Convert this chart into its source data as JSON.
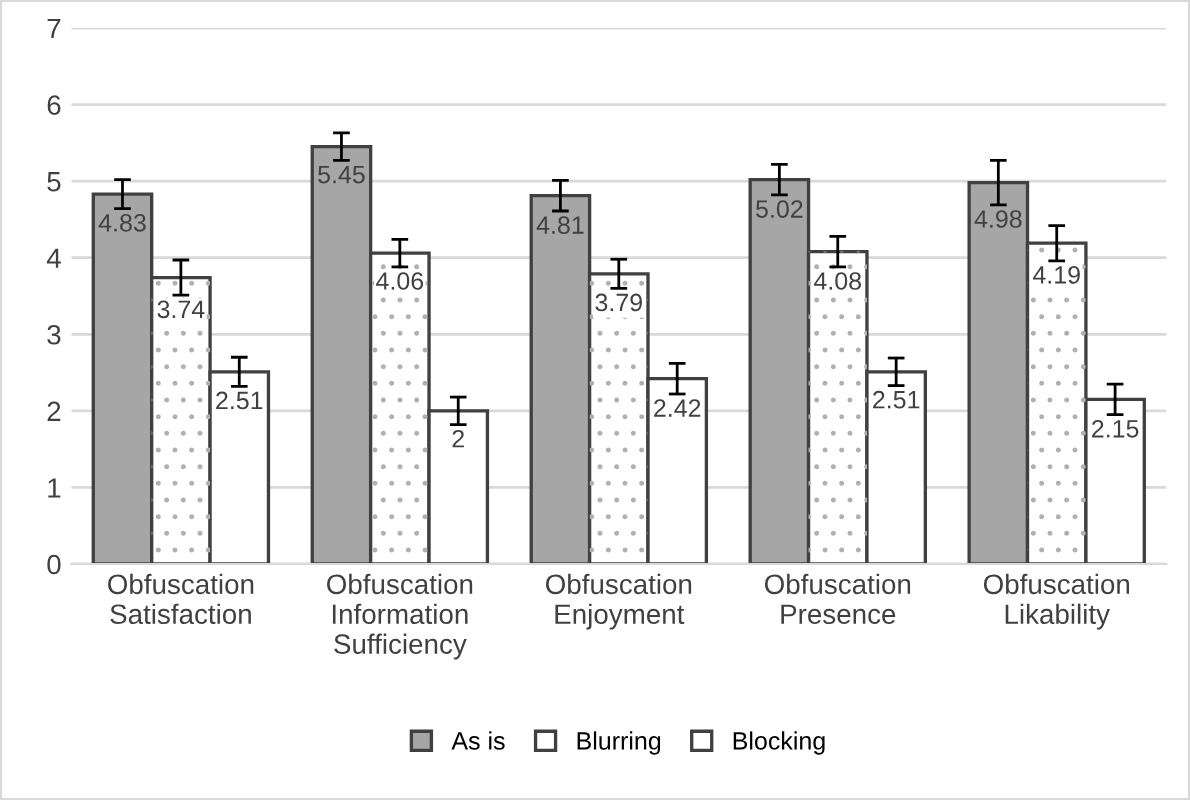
{
  "chart_data": {
    "type": "bar",
    "categories": [
      "Obfuscation\nSatisfaction",
      "Obfuscation\nInformation\nSufficiency",
      "Obfuscation\nEnjoyment",
      "Obfuscation\nPresence",
      "Obfuscation\nLikability"
    ],
    "series": [
      {
        "name": "As is",
        "color": "#a6a6a6",
        "values": [
          4.83,
          5.45,
          4.81,
          5.02,
          4.98
        ],
        "errors": [
          0.19,
          0.18,
          0.2,
          0.2,
          0.29
        ]
      },
      {
        "name": "Blurring",
        "color": "#ffffff",
        "values": [
          3.74,
          4.06,
          3.79,
          4.08,
          4.19
        ],
        "errors": [
          0.23,
          0.18,
          0.19,
          0.2,
          0.23
        ]
      },
      {
        "name": "Blocking",
        "color": "#ffffff",
        "values": [
          2.51,
          2,
          2.42,
          2.51,
          2.15
        ],
        "errors": [
          0.19,
          0.18,
          0.2,
          0.18,
          0.2
        ]
      }
    ],
    "ylim": [
      0,
      7
    ],
    "yticks": [
      0,
      1,
      2,
      3,
      4,
      5,
      6,
      7
    ],
    "grid": "y",
    "legend": "bottom",
    "data_labels": true
  }
}
